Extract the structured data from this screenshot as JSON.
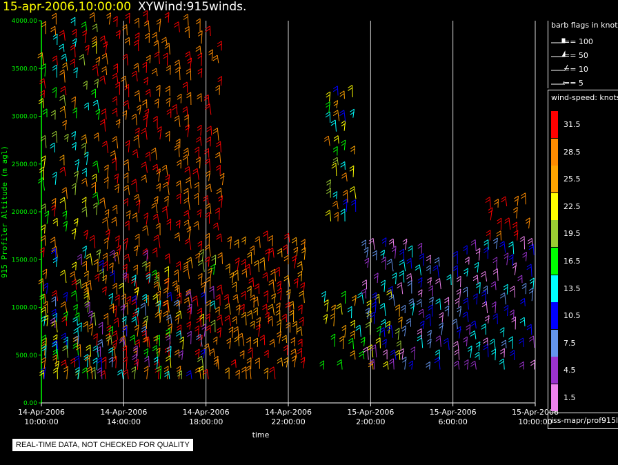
{
  "header": {
    "date": "15-apr-2006,10:00:00",
    "product": "XYWind:915winds."
  },
  "chart_data": {
    "type": "scatter",
    "title": "XYWind:915winds.",
    "xlabel": "time",
    "ylabel": "915 Profiler Altitude (m agl)",
    "ylim": [
      0,
      4000
    ],
    "yticks": [
      "0.00",
      "500.00",
      "1000.00",
      "1500.00",
      "2000.00",
      "2500.00",
      "3000.00",
      "3500.00",
      "4000.00"
    ],
    "x_hours_since_start_range": [
      0,
      24
    ],
    "xticks": [
      {
        "date": "14-Apr-2006",
        "time": "10:00:00"
      },
      {
        "date": "14-Apr-2006",
        "time": "14:00:00"
      },
      {
        "date": "14-Apr-2006",
        "time": "18:00:00"
      },
      {
        "date": "14-Apr-2006",
        "time": "22:00:00"
      },
      {
        "date": "15-Apr-2006",
        "time": "2:00:00"
      },
      {
        "date": "15-Apr-2006",
        "time": "6:00:00"
      },
      {
        "date": "15-Apr-2006",
        "time": "10:00:00"
      }
    ],
    "grid": true,
    "note": "Wind barbs colored by wind speed (knots); strong red/orange winds aloft 14-Apr afternoon, weaker purple/blue winds below 1500 m early 15-Apr",
    "speed_legend": [
      {
        "label": "31.5",
        "color": "#ff0000"
      },
      {
        "label": "28.5",
        "color": "#ff8c00"
      },
      {
        "label": "25.5",
        "color": "#ffa500"
      },
      {
        "label": "22.5",
        "color": "#ffff00"
      },
      {
        "label": "19.5",
        "color": "#9acd32"
      },
      {
        "label": "16.5",
        "color": "#00ff00"
      },
      {
        "label": "13.5",
        "color": "#00ffff"
      },
      {
        "label": "10.5",
        "color": "#0000ff"
      },
      {
        "label": "7.5",
        "color": "#6495ed"
      },
      {
        "label": "4.5",
        "color": "#9a32cd"
      },
      {
        "label": "1.5",
        "color": "#ee82ee"
      }
    ]
  },
  "barb_legend": {
    "title": "barb flags in knots",
    "items": [
      "== 100",
      "== 50",
      "== 10",
      "== 5"
    ]
  },
  "speed_legend_title": "wind-speed: knots",
  "station": "iss-mapr/prof915l",
  "disclaimer": "REAL-TIME DATA, NOT CHECKED FOR QUALITY",
  "colors": {
    "axis": "#00ff00",
    "grid": "#ffffff",
    "date": "#ffff00"
  }
}
